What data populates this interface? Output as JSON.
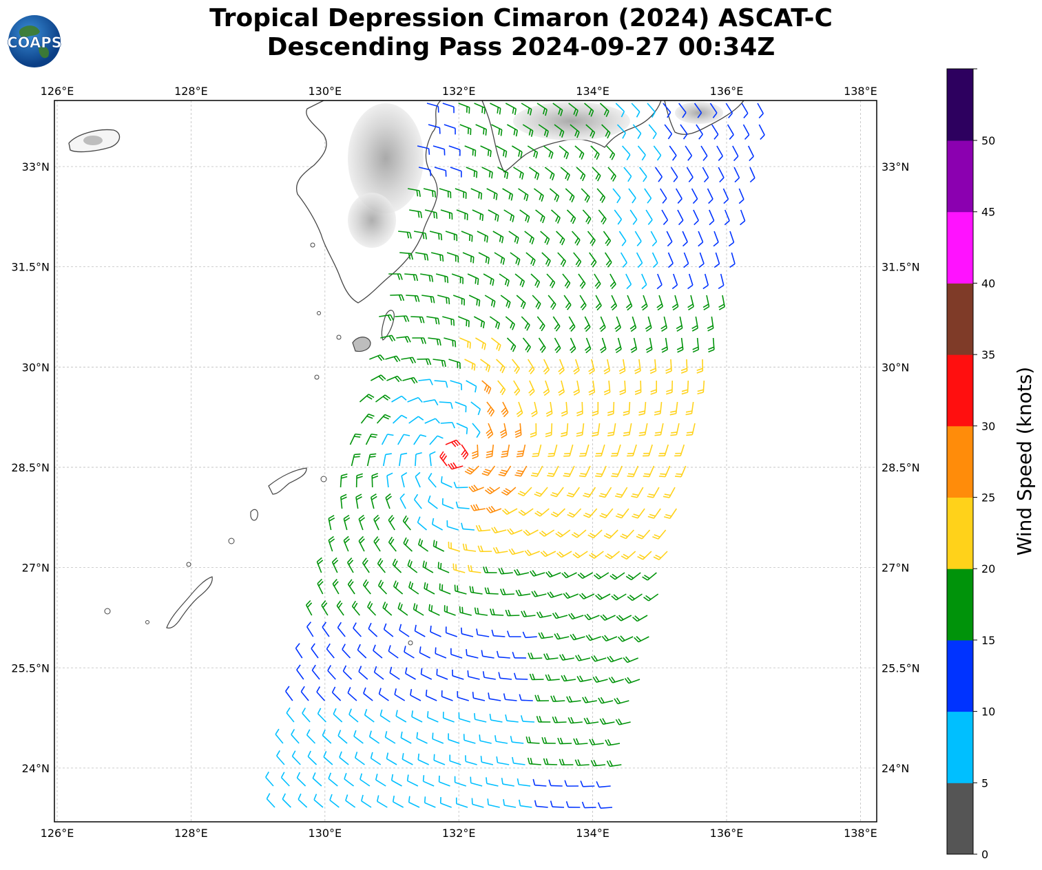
{
  "title": {
    "line1": "Tropical Depression Cimaron (2024) ASCAT-C",
    "line2": "Descending Pass 2024-09-27 00:34Z"
  },
  "logo": {
    "text": "COAPS",
    "icon": "globe-logo-icon"
  },
  "map": {
    "lon_ticks": [
      "126°E",
      "128°E",
      "130°E",
      "132°E",
      "134°E",
      "136°E",
      "138°E"
    ],
    "lat_ticks": [
      "33°N",
      "31.5°N",
      "30°N",
      "28.5°N",
      "27°N",
      "25.5°N",
      "24°N"
    ],
    "lon_range": [
      126,
      138.2
    ],
    "lat_range": [
      23.2,
      34
    ],
    "gridlines": true,
    "land_color": "#ffffff",
    "coastline_color": "#444444",
    "colors": {
      "gray": "#555555",
      "cyan": "#00bfff",
      "blue": "#0033ff",
      "green": "#00930a",
      "yellow": "#ffd21a",
      "orange": "#ff8c0a",
      "red": "#ff0f0f",
      "brown": "#7f3b28",
      "magenta": "#ff12ff",
      "purple": "#8b00b0",
      "navy": "#2d005f"
    }
  },
  "colorbar": {
    "label": "Wind Speed (knots)",
    "ticks": [
      "0",
      "5",
      "10",
      "15",
      "20",
      "25",
      "30",
      "35",
      "40",
      "45",
      "50"
    ],
    "bins": [
      {
        "min": 0,
        "max": 5,
        "color": "#555555"
      },
      {
        "min": 5,
        "max": 10,
        "color": "#00bfff"
      },
      {
        "min": 10,
        "max": 15,
        "color": "#0033ff"
      },
      {
        "min": 15,
        "max": 20,
        "color": "#00930a"
      },
      {
        "min": 20,
        "max": 25,
        "color": "#ffd21a"
      },
      {
        "min": 25,
        "max": 30,
        "color": "#ff8c0a"
      },
      {
        "min": 30,
        "max": 35,
        "color": "#ff0f0f"
      },
      {
        "min": 35,
        "max": 40,
        "color": "#7f3b28"
      },
      {
        "min": 40,
        "max": 45,
        "color": "#ff12ff"
      },
      {
        "min": 45,
        "max": 50,
        "color": "#8b00b0"
      },
      {
        "min": 50,
        "max": 55,
        "color": "#2d005f"
      }
    ]
  }
}
